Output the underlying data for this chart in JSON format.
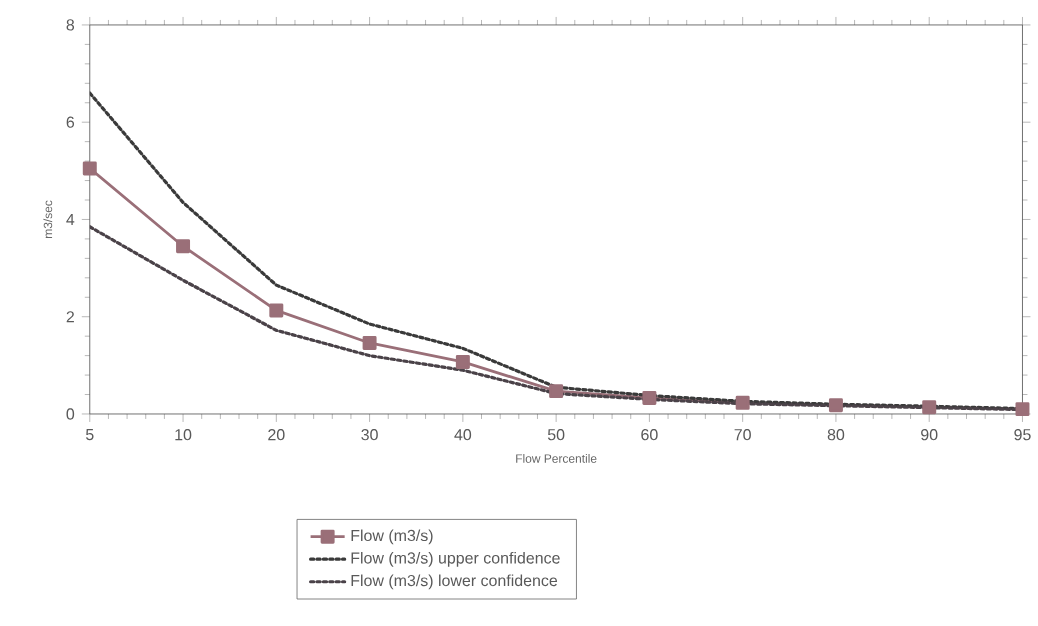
{
  "chart_data": {
    "type": "line",
    "xlabel": "Flow Percentile",
    "ylabel": "m3/sec",
    "categories": [
      "5",
      "10",
      "20",
      "30",
      "40",
      "50",
      "60",
      "70",
      "80",
      "90",
      "95"
    ],
    "series": [
      {
        "name": "Flow (m3/s)",
        "color": "#9a6f78",
        "marker": "square",
        "line_style": "solid",
        "values": [
          5.05,
          3.45,
          2.13,
          1.46,
          1.07,
          0.47,
          0.33,
          0.23,
          0.18,
          0.14,
          0.1
        ]
      },
      {
        "name": "Flow (m3/s) upper confidence",
        "color": "#3a3a3a",
        "marker": "none",
        "line_style": "dotted",
        "values": [
          6.6,
          4.35,
          2.65,
          1.85,
          1.35,
          0.55,
          0.38,
          0.26,
          0.2,
          0.16,
          0.11
        ]
      },
      {
        "name": "Flow (m3/s) lower confidence",
        "color": "#4a4248",
        "marker": "none",
        "line_style": "dotted",
        "values": [
          3.85,
          2.75,
          1.72,
          1.2,
          0.9,
          0.42,
          0.3,
          0.21,
          0.17,
          0.13,
          0.09
        ]
      }
    ],
    "ylim": [
      0,
      8
    ],
    "yticks": [
      0,
      2,
      4,
      6,
      8
    ],
    "grid": false,
    "legend": "bottom"
  }
}
